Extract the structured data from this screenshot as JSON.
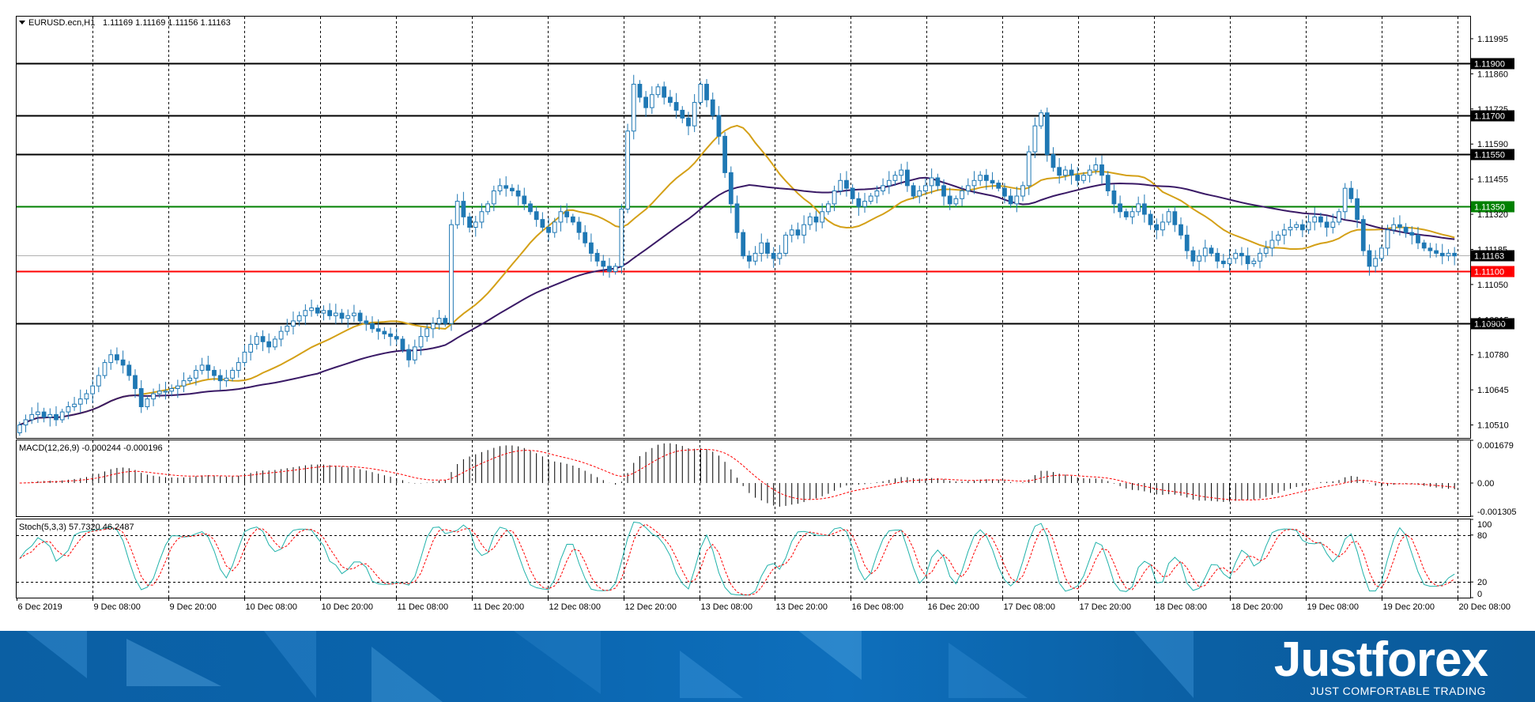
{
  "chart_data": [
    {
      "type": "candlestick",
      "symbol_label": "EURUSD.ecn,H1",
      "ohlc_readout": "1.11169 1.11169 1.11156 1.11163",
      "ylim": [
        1.1046,
        1.1208
      ],
      "y_ticks": [
        "1.11995",
        "1.11860",
        "1.11725",
        "1.11590",
        "1.11455",
        "1.11320",
        "1.11185",
        "1.11050",
        "1.10915",
        "1.10780",
        "1.10645",
        "1.10510"
      ],
      "x_ticks": [
        "6 Dec 2019",
        "9 Dec 08:00",
        "9 Dec 20:00",
        "10 Dec 08:00",
        "10 Dec 20:00",
        "11 Dec 08:00",
        "11 Dec 20:00",
        "12 Dec 08:00",
        "12 Dec 20:00",
        "13 Dec 08:00",
        "13 Dec 20:00",
        "16 Dec 08:00",
        "16 Dec 20:00",
        "17 Dec 08:00",
        "17 Dec 20:00",
        "18 Dec 08:00",
        "18 Dec 20:00",
        "19 Dec 08:00",
        "19 Dec 20:00",
        "20 Dec 08:00"
      ],
      "levels": [
        {
          "value": 1.119,
          "label": "1.11900",
          "color": "#000000"
        },
        {
          "value": 1.117,
          "label": "1.11700",
          "color": "#000000"
        },
        {
          "value": 1.1155,
          "label": "1.11550",
          "color": "#000000"
        },
        {
          "value": 1.1135,
          "label": "1.11350",
          "color": "#008000"
        },
        {
          "value": 1.111,
          "label": "1.11100",
          "color": "#ff0000"
        },
        {
          "value": 1.109,
          "label": "1.10900",
          "color": "#000000"
        }
      ],
      "current_price": {
        "value": 1.11163,
        "label": "1.11163"
      },
      "candle_color": "#1f78b4",
      "ma_fast_color": "#d4a017",
      "ma_slow_color": "#3a1a66",
      "grid": true,
      "closes": [
        1.1051,
        1.1053,
        1.1055,
        1.1056,
        1.1054,
        1.1055,
        1.1053,
        1.1056,
        1.1058,
        1.1059,
        1.1061,
        1.1063,
        1.1066,
        1.107,
        1.1075,
        1.1078,
        1.1076,
        1.1074,
        1.107,
        1.1065,
        1.1058,
        1.1061,
        1.1063,
        1.1064,
        1.1064,
        1.1065,
        1.1066,
        1.1068,
        1.1069,
        1.1072,
        1.1074,
        1.1072,
        1.107,
        1.1068,
        1.1069,
        1.1072,
        1.1075,
        1.1079,
        1.1082,
        1.1085,
        1.1083,
        1.1081,
        1.1084,
        1.1087,
        1.1089,
        1.1091,
        1.1093,
        1.1095,
        1.1096,
        1.1094,
        1.1095,
        1.1093,
        1.1094,
        1.1092,
        1.1093,
        1.1094,
        1.1091,
        1.109,
        1.1088,
        1.1087,
        1.1086,
        1.1085,
        1.1084,
        1.108,
        1.1076,
        1.1081,
        1.1085,
        1.1088,
        1.109,
        1.1092,
        1.109,
        1.1128,
        1.1137,
        1.1131,
        1.1127,
        1.1129,
        1.1133,
        1.1136,
        1.1141,
        1.1143,
        1.1142,
        1.1141,
        1.1139,
        1.1136,
        1.1133,
        1.113,
        1.1127,
        1.1125,
        1.1129,
        1.1133,
        1.1131,
        1.1129,
        1.1125,
        1.1121,
        1.1117,
        1.1114,
        1.1112,
        1.111,
        1.1112,
        1.1134,
        1.1164,
        1.1182,
        1.1177,
        1.1173,
        1.1178,
        1.1181,
        1.1177,
        1.1175,
        1.1172,
        1.1169,
        1.1166,
        1.1175,
        1.1182,
        1.1176,
        1.117,
        1.1162,
        1.1148,
        1.1136,
        1.1125,
        1.1116,
        1.1114,
        1.1117,
        1.1121,
        1.1117,
        1.1115,
        1.1117,
        1.1124,
        1.1126,
        1.1124,
        1.1128,
        1.1131,
        1.1129,
        1.1133,
        1.1136,
        1.1141,
        1.1145,
        1.1142,
        1.1138,
        1.1135,
        1.1137,
        1.1139,
        1.1141,
        1.1143,
        1.1145,
        1.1147,
        1.1149,
        1.1143,
        1.1139,
        1.1141,
        1.1143,
        1.1146,
        1.1143,
        1.1139,
        1.1136,
        1.1138,
        1.1141,
        1.1143,
        1.1145,
        1.1147,
        1.1145,
        1.1144,
        1.1142,
        1.1139,
        1.1136,
        1.1139,
        1.1143,
        1.1156,
        1.1166,
        1.1171,
        1.1155,
        1.115,
        1.1147,
        1.1149,
        1.1147,
        1.1145,
        1.1147,
        1.1149,
        1.1151,
        1.1147,
        1.1141,
        1.1136,
        1.1133,
        1.1131,
        1.1133,
        1.1136,
        1.1132,
        1.1128,
        1.1126,
        1.1129,
        1.1133,
        1.1128,
        1.1124,
        1.1118,
        1.1114,
        1.1116,
        1.1119,
        1.1117,
        1.1114,
        1.1113,
        1.1115,
        1.1117,
        1.1116,
        1.1113,
        1.1114,
        1.1117,
        1.1119,
        1.1122,
        1.1124,
        1.1126,
        1.1127,
        1.1128,
        1.1126,
        1.1129,
        1.1131,
        1.1129,
        1.1127,
        1.1129,
        1.1133,
        1.1142,
        1.1138,
        1.113,
        1.1118,
        1.1112,
        1.1115,
        1.1119,
        1.1126,
        1.1128,
        1.1127,
        1.1125,
        1.1124,
        1.1121,
        1.1119,
        1.1118,
        1.1117,
        1.1116,
        1.1117,
        1.1116
      ]
    },
    {
      "type": "bar",
      "label": "MACD(12,26,9) -0.000244 -0.000196",
      "ylim": [
        -0.001305,
        0.001679
      ],
      "y_ticks": [
        "0.001679",
        "0.00",
        "-0.001305"
      ],
      "histogram_color": "#000000",
      "signal_color": "#ff0000"
    },
    {
      "type": "line",
      "label": "Stoch(5,3,3) 57.7320 46.2487",
      "ylim": [
        0,
        100
      ],
      "y_ticks": [
        "100",
        "80",
        "20",
        "0"
      ],
      "main_color": "#20b2aa",
      "signal_color": "#ff0000"
    }
  ],
  "branding": {
    "name": "Justforex",
    "tagline": "JUST COMFORTABLE TRADING",
    "banner_color": "#0b62a8"
  }
}
